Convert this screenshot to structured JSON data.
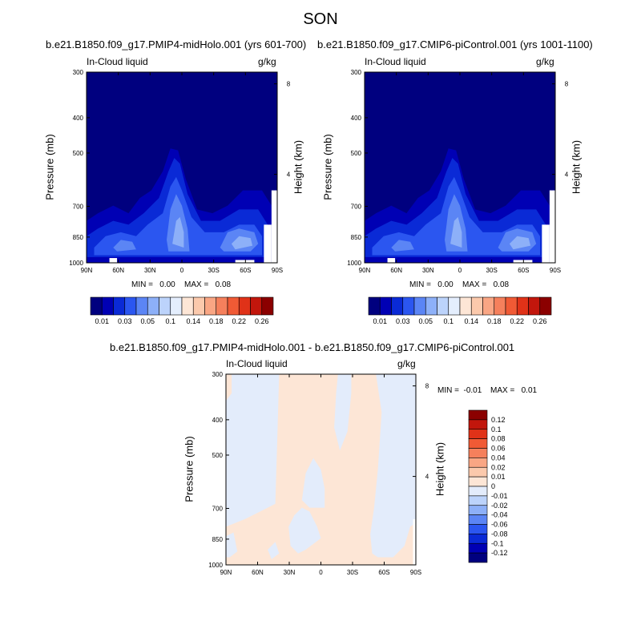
{
  "page": {
    "title": "SON"
  },
  "panels": [
    {
      "title": "b.e21.B1850.f09_g17.PMIP4-midHolo.001 (yrs 601-700)",
      "left_label": "In-Cloud liquid",
      "right_label": "g/kg",
      "ylabel": "Pressure (mb)",
      "y2label": "Height (km)",
      "min_text": "MIN =   0.00",
      "max_text": "MAX =   0.08"
    },
    {
      "title": "b.e21.B1850.f09_g17.CMIP6-piControl.001 (yrs 1001-1100)",
      "left_label": "In-Cloud liquid",
      "right_label": "g/kg",
      "ylabel": "Pressure (mb)",
      "y2label": "Height (km)",
      "min_text": "MIN =   0.00",
      "max_text": "MAX =   0.08"
    },
    {
      "title": "b.e21.B1850.f09_g17.PMIP4-midHolo.001 - b.e21.B1850.f09_g17.CMIP6-piControl.001",
      "left_label": "In-Cloud liquid",
      "right_label": "g/kg",
      "ylabel": "Pressure (mb)",
      "y2label": "Height (km)",
      "min_text": "MIN =  -0.01",
      "max_text": "MAX =   0.01"
    }
  ],
  "axes": {
    "x_ticks": [
      "90N",
      "60N",
      "30N",
      "0",
      "30S",
      "60S",
      "90S"
    ],
    "y_ticks": [
      "300",
      "400",
      "500",
      "700",
      "850",
      "1000"
    ],
    "y_tick_values": [
      300,
      400,
      500,
      700,
      850,
      1000
    ],
    "y2_ticks": [
      "8",
      "4"
    ],
    "y2_tick_values_km": [
      8,
      4
    ],
    "ylim": [
      1000,
      300
    ],
    "xlim": [
      "90N",
      "90S"
    ]
  },
  "colorbars": {
    "field": {
      "labels": [
        "0.01",
        "0.03",
        "0.05",
        "0.1",
        "0.14",
        "0.18",
        "0.22",
        "0.26"
      ],
      "colors": [
        "#00007f",
        "#0000b4",
        "#0a2ad6",
        "#2b56f0",
        "#5b85f5",
        "#8db0f8",
        "#bcd3fb",
        "#e4eefd",
        "#fde6d6",
        "#fbc9ac",
        "#f9a684",
        "#f5805c",
        "#f05a35",
        "#e03218",
        "#c2160c",
        "#8b0000"
      ]
    },
    "diff": {
      "labels": [
        "0.12",
        "0.1",
        "0.08",
        "0.06",
        "0.04",
        "0.02",
        "0.01",
        "0",
        "-0.01",
        "-0.02",
        "-0.04",
        "-0.06",
        "-0.08",
        "-0.1",
        "-0.12"
      ],
      "colors": [
        "#8b0000",
        "#c2160c",
        "#e03218",
        "#f05a35",
        "#f5805c",
        "#f9a684",
        "#fbc9ac",
        "#fde6d6",
        "#e3ecfb",
        "#bcd3fb",
        "#8db0f8",
        "#5b85f5",
        "#2b56f0",
        "#0a2ad6",
        "#0000b4",
        "#00007f"
      ]
    }
  },
  "chart_data": [
    {
      "type": "heatmap",
      "title": "b.e21.B1850.f09_g17.PMIP4-midHolo.001 (yrs 601-700)",
      "xlabel": "",
      "ylabel": "Pressure (mb)",
      "x": [
        "90N",
        "60N",
        "30N",
        "0",
        "30S",
        "60S",
        "90S"
      ],
      "y": [
        300,
        400,
        500,
        700,
        850,
        1000
      ],
      "value_min": 0.0,
      "value_max": 0.08,
      "units": "g/kg",
      "note_values": {
        "background": 0.005,
        "equatorial_max": 0.06,
        "low_level_peak_30S_60S": 0.08
      }
    },
    {
      "type": "heatmap",
      "title": "b.e21.B1850.f09_g17.CMIP6-piControl.001 (yrs 1001-1100)",
      "xlabel": "",
      "ylabel": "Pressure (mb)",
      "x": [
        "90N",
        "60N",
        "30N",
        "0",
        "30S",
        "60S",
        "90S"
      ],
      "y": [
        300,
        400,
        500,
        700,
        850,
        1000
      ],
      "value_min": 0.0,
      "value_max": 0.08,
      "units": "g/kg"
    },
    {
      "type": "heatmap",
      "title": "b.e21.B1850.f09_g17.PMIP4-midHolo.001 - b.e21.B1850.f09_g17.CMIP6-piControl.001",
      "xlabel": "",
      "ylabel": "Pressure (mb)",
      "x": [
        "90N",
        "60N",
        "30N",
        "0",
        "30S",
        "60S",
        "90S"
      ],
      "y": [
        300,
        400,
        500,
        700,
        850,
        1000
      ],
      "value_min": -0.01,
      "value_max": 0.01,
      "units": "g/kg"
    }
  ]
}
